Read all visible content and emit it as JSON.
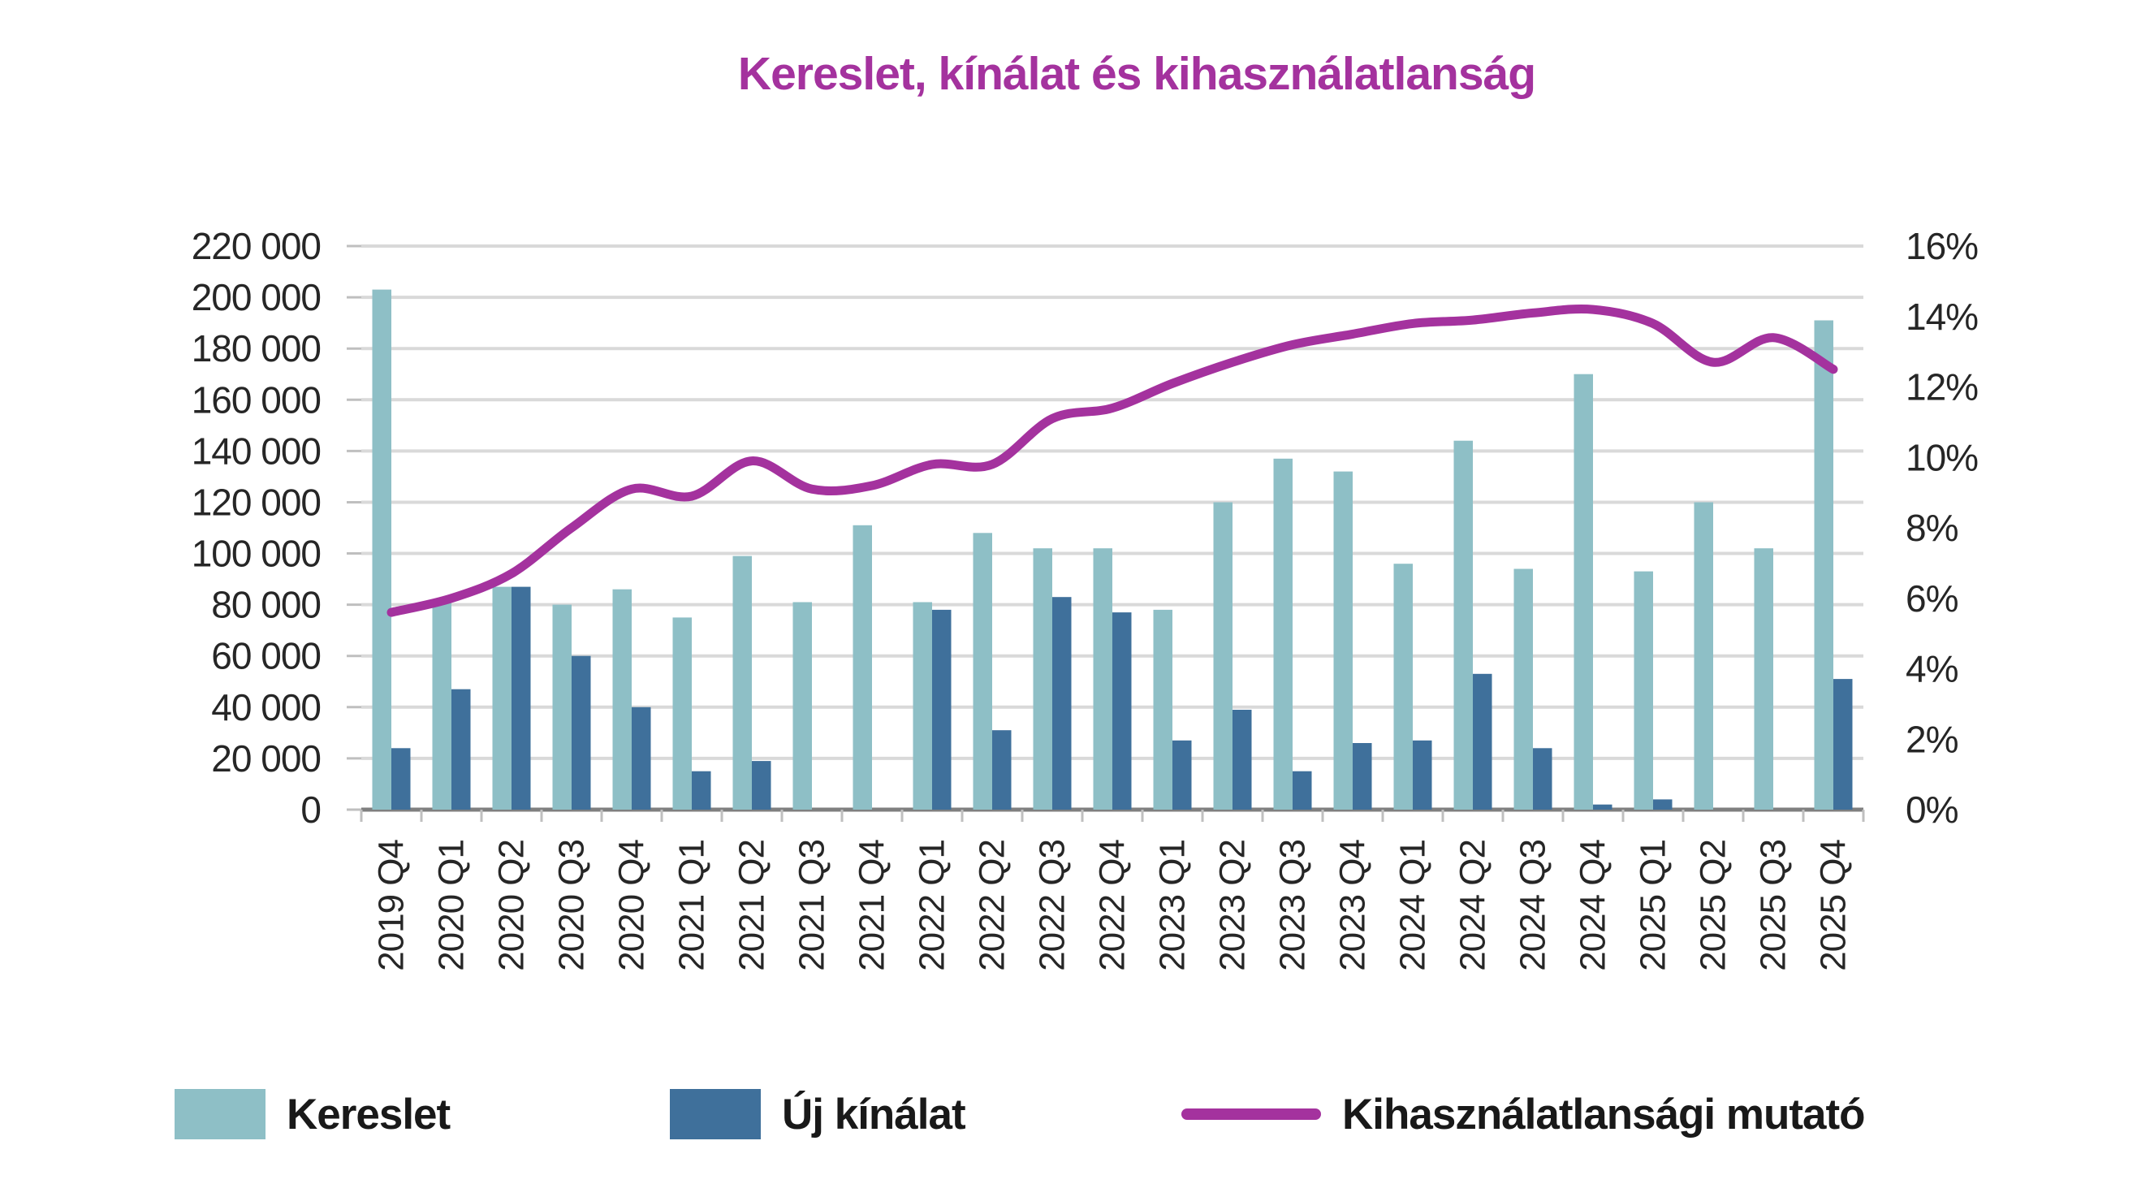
{
  "chart_data": {
    "type": "bar+line",
    "title": "Kereslet, kínálat és kihasználatlanság",
    "legend_position": "bottom",
    "grid": true,
    "categories": [
      "2019 Q4",
      "2020 Q1",
      "2020 Q2",
      "2020 Q3",
      "2020 Q4",
      "2021 Q1",
      "2021 Q2",
      "2021 Q3",
      "2021 Q4",
      "2022 Q1",
      "2022 Q2",
      "2022 Q3",
      "2022 Q4",
      "2023 Q1",
      "2023 Q2",
      "2023 Q3",
      "2023 Q4",
      "2024 Q1",
      "2024 Q2",
      "2024 Q3",
      "2024 Q4",
      "2025 Q1",
      "2025 Q2",
      "2025 Q3",
      "2025 Q4"
    ],
    "series": [
      {
        "name": "Kereslet",
        "type": "bar",
        "axis": "left",
        "color": "#8ebfc6",
        "values": [
          203000,
          81000,
          87000,
          80000,
          86000,
          75000,
          99000,
          81000,
          111000,
          81000,
          108000,
          102000,
          102000,
          78000,
          120000,
          137000,
          132000,
          96000,
          144000,
          94000,
          170000,
          93000,
          120000,
          102000,
          191000
        ]
      },
      {
        "name": "Új kínálat",
        "type": "bar",
        "axis": "left",
        "color": "#3f709b",
        "values": [
          24000,
          47000,
          87000,
          60000,
          40000,
          15000,
          19000,
          0,
          0,
          78000,
          31000,
          83000,
          77000,
          27000,
          39000,
          15000,
          26000,
          27000,
          53000,
          24000,
          2000,
          4000,
          0,
          0,
          51000
        ]
      }
    ],
    "line_series": {
      "name": "Kihasználatlansági mutató",
      "type": "line",
      "axis": "right",
      "color": "#a4329e",
      "values_pct": [
        5.6,
        6.0,
        6.7,
        8.0,
        9.1,
        8.9,
        9.9,
        9.1,
        9.2,
        9.8,
        9.8,
        11.1,
        11.4,
        12.1,
        12.7,
        13.2,
        13.5,
        13.8,
        13.9,
        14.1,
        14.2,
        13.8,
        12.7,
        13.4,
        12.5
      ]
    },
    "left_axis": {
      "min": 0,
      "max": 220000,
      "step": 20000,
      "tick_labels": [
        "0",
        "20 000",
        "40 000",
        "60 000",
        "80 000",
        "100 000",
        "120 000",
        "140 000",
        "160 000",
        "180 000",
        "200 000",
        "220 000"
      ]
    },
    "right_axis": {
      "min": 0,
      "max": 16,
      "step": 2,
      "unit": "%",
      "tick_labels": [
        "0%",
        "2%",
        "4%",
        "6%",
        "8%",
        "10%",
        "12%",
        "14%",
        "16%"
      ]
    }
  },
  "colors": {
    "title": "#a4329e",
    "gridline": "#d9d9d9",
    "baseline": "#7f7f7f",
    "tick": "#bfbfbf",
    "axis_text": "#262626",
    "legend_text": "#191919"
  }
}
